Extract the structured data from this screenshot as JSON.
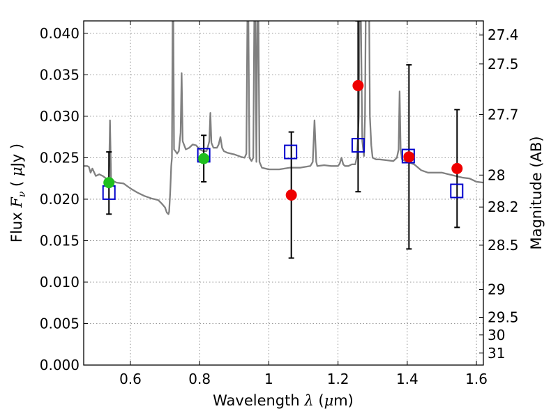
{
  "chart_data": {
    "type": "scatter",
    "xlabel_text": "Wavelength",
    "xlabel_symbol": "λ",
    "xlabel_unit_open": " (",
    "xlabel_unit_mu": "μ",
    "xlabel_unit_close": "m)",
    "ylabel_text": "Flux",
    "ylabel_symbol": "F",
    "ylabel_sub": "ν",
    "ylabel_unit_open": "( ",
    "ylabel_unit_mu": "μ",
    "ylabel_unit_close": "Jy )",
    "y2label": "Magnitude (AB)",
    "xlim": [
      0.465,
      1.62
    ],
    "ylim": [
      0.0,
      0.0415
    ],
    "xticks": [
      0.6,
      0.8,
      1.0,
      1.2,
      1.4,
      1.6
    ],
    "xtick_labels": [
      "0.6",
      "0.8",
      "1",
      "1.2",
      "1.4",
      "1.6"
    ],
    "yticks": [
      0.0,
      0.005,
      0.01,
      0.015,
      0.02,
      0.025,
      0.03,
      0.035,
      0.04
    ],
    "ytick_labels": [
      "0.000",
      "0.005",
      "0.010",
      "0.015",
      "0.020",
      "0.025",
      "0.030",
      "0.035",
      "0.040"
    ],
    "y2ticks": [
      27.4,
      27.5,
      27.7,
      28,
      28.2,
      28.5,
      29,
      29.5,
      30,
      31
    ],
    "y2tick_labels": [
      "27.4",
      "27.5",
      "27.7",
      "28",
      "28.2",
      "28.5",
      "29",
      "29.5",
      "30",
      "31"
    ],
    "grid": true,
    "colors": {
      "sed_line": "#808080",
      "model_box": "#0000cc",
      "green_obs": "#1fbf1f",
      "red_obs": "#ee0000",
      "error_bar": "#000000"
    },
    "series": [
      {
        "name": "model SED",
        "kind": "line",
        "points": [
          [
            0.465,
            0.024
          ],
          [
            0.475,
            0.024
          ],
          [
            0.48,
            0.0239
          ],
          [
            0.485,
            0.0232
          ],
          [
            0.49,
            0.0237
          ],
          [
            0.5,
            0.0228
          ],
          [
            0.51,
            0.023
          ],
          [
            0.52,
            0.0228
          ],
          [
            0.53,
            0.0225
          ],
          [
            0.538,
            0.0222
          ],
          [
            0.541,
            0.0295
          ],
          [
            0.544,
            0.0226
          ],
          [
            0.55,
            0.0222
          ],
          [
            0.56,
            0.022
          ],
          [
            0.58,
            0.0219
          ],
          [
            0.6,
            0.0213
          ],
          [
            0.62,
            0.0208
          ],
          [
            0.64,
            0.0204
          ],
          [
            0.66,
            0.0201
          ],
          [
            0.68,
            0.0199
          ],
          [
            0.69,
            0.0195
          ],
          [
            0.7,
            0.019
          ],
          [
            0.705,
            0.0184
          ],
          [
            0.71,
            0.0182
          ],
          [
            0.712,
            0.0185
          ],
          [
            0.715,
            0.0208
          ],
          [
            0.718,
            0.024
          ],
          [
            0.72,
            0.025
          ],
          [
            0.722,
            0.042
          ],
          [
            0.724,
            0.042
          ],
          [
            0.726,
            0.026
          ],
          [
            0.73,
            0.0258
          ],
          [
            0.735,
            0.0255
          ],
          [
            0.74,
            0.0258
          ],
          [
            0.745,
            0.028
          ],
          [
            0.748,
            0.0352
          ],
          [
            0.751,
            0.027
          ],
          [
            0.76,
            0.026
          ],
          [
            0.77,
            0.0262
          ],
          [
            0.78,
            0.0266
          ],
          [
            0.79,
            0.0265
          ],
          [
            0.8,
            0.026
          ],
          [
            0.81,
            0.0258
          ],
          [
            0.82,
            0.0258
          ],
          [
            0.825,
            0.0265
          ],
          [
            0.828,
            0.027
          ],
          [
            0.831,
            0.0304
          ],
          [
            0.834,
            0.0268
          ],
          [
            0.84,
            0.0262
          ],
          [
            0.85,
            0.0262
          ],
          [
            0.855,
            0.0266
          ],
          [
            0.86,
            0.0275
          ],
          [
            0.865,
            0.0262
          ],
          [
            0.87,
            0.0258
          ],
          [
            0.88,
            0.0256
          ],
          [
            0.9,
            0.0254
          ],
          [
            0.92,
            0.0251
          ],
          [
            0.93,
            0.025
          ],
          [
            0.935,
            0.0255
          ],
          [
            0.938,
            0.042
          ],
          [
            0.941,
            0.042
          ],
          [
            0.944,
            0.025
          ],
          [
            0.95,
            0.0246
          ],
          [
            0.955,
            0.025
          ],
          [
            0.958,
            0.042
          ],
          [
            0.961,
            0.042
          ],
          [
            0.964,
            0.0245
          ],
          [
            0.967,
            0.042
          ],
          [
            0.97,
            0.042
          ],
          [
            0.973,
            0.0245
          ],
          [
            0.98,
            0.0238
          ],
          [
            1.0,
            0.0236
          ],
          [
            1.03,
            0.0236
          ],
          [
            1.06,
            0.0238
          ],
          [
            1.09,
            0.0238
          ],
          [
            1.12,
            0.024
          ],
          [
            1.127,
            0.0245
          ],
          [
            1.132,
            0.0295
          ],
          [
            1.137,
            0.0245
          ],
          [
            1.14,
            0.024
          ],
          [
            1.16,
            0.0241
          ],
          [
            1.18,
            0.024
          ],
          [
            1.2,
            0.024
          ],
          [
            1.205,
            0.0243
          ],
          [
            1.21,
            0.025
          ],
          [
            1.215,
            0.0242
          ],
          [
            1.22,
            0.024
          ],
          [
            1.23,
            0.024
          ],
          [
            1.24,
            0.0242
          ],
          [
            1.25,
            0.0242
          ],
          [
            1.255,
            0.0252
          ],
          [
            1.26,
            0.03
          ],
          [
            1.262,
            0.042
          ],
          [
            1.266,
            0.042
          ],
          [
            1.27,
            0.027
          ],
          [
            1.275,
            0.0252
          ],
          [
            1.278,
            0.03
          ],
          [
            1.28,
            0.042
          ],
          [
            1.29,
            0.042
          ],
          [
            1.292,
            0.03
          ],
          [
            1.296,
            0.0265
          ],
          [
            1.3,
            0.025
          ],
          [
            1.31,
            0.0248
          ],
          [
            1.32,
            0.0248
          ],
          [
            1.34,
            0.0247
          ],
          [
            1.36,
            0.0246
          ],
          [
            1.37,
            0.025
          ],
          [
            1.375,
            0.026
          ],
          [
            1.378,
            0.033
          ],
          [
            1.381,
            0.026
          ],
          [
            1.385,
            0.0248
          ],
          [
            1.4,
            0.0245
          ],
          [
            1.42,
            0.0242
          ],
          [
            1.44,
            0.0235
          ],
          [
            1.46,
            0.0232
          ],
          [
            1.48,
            0.0232
          ],
          [
            1.5,
            0.0232
          ],
          [
            1.52,
            0.023
          ],
          [
            1.54,
            0.0228
          ],
          [
            1.56,
            0.0226
          ],
          [
            1.58,
            0.0225
          ],
          [
            1.6,
            0.0221
          ],
          [
            1.62,
            0.022
          ]
        ]
      },
      {
        "name": "model photometry",
        "kind": "open-square",
        "x": [
          0.538,
          0.812,
          1.063,
          1.258,
          1.403,
          1.543
        ],
        "y": [
          0.0208,
          0.0253,
          0.0257,
          0.0265,
          0.0252,
          0.021
        ]
      },
      {
        "name": "observed (green)",
        "kind": "filled-circle",
        "color_key": "green_obs",
        "x": [
          0.538,
          0.812
        ],
        "y": [
          0.022,
          0.0249
        ],
        "yerr_low": [
          0.0182,
          0.0221
        ],
        "yerr_high": [
          0.0257,
          0.0277
        ]
      },
      {
        "name": "observed (red)",
        "kind": "filled-circle",
        "color_key": "red_obs",
        "x": [
          1.065,
          1.258,
          1.405,
          1.544
        ],
        "y": [
          0.0205,
          0.0337,
          0.0251,
          0.0237
        ],
        "yerr_low": [
          0.0129,
          0.0209,
          0.014,
          0.0166
        ],
        "yerr_high": [
          0.0281,
          0.0415,
          0.0362,
          0.0308
        ]
      }
    ]
  }
}
